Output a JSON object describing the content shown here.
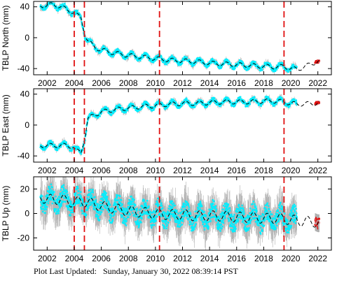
{
  "footer": {
    "label": "Plot Last Updated:",
    "value": "Sunday, January 30, 2022 08:39:14 PST"
  },
  "colors": {
    "data_fill": "#00eeff",
    "error_bars": "#b0b0b0",
    "event_lines": "#e01010",
    "trend": "#000000",
    "recent": "#e01010"
  },
  "chart_data": [
    {
      "type": "scatter",
      "ylabel": "TBLP North (mm)",
      "xlim": [
        2001.0,
        2023.0
      ],
      "ylim": [
        -48,
        47
      ],
      "xticks": [
        2002,
        2004,
        2006,
        2008,
        2010,
        2012,
        2014,
        2016,
        2018,
        2020,
        2022
      ],
      "yticks": [
        -40,
        0,
        40
      ],
      "event_lines": [
        2004.0,
        2004.75,
        2010.3,
        2019.5
      ],
      "series": [
        {
          "values": [
            [
              2001.5,
              41
            ],
            [
              2002.0,
              42
            ],
            [
              2002.5,
              43
            ],
            [
              2003.0,
              40
            ],
            [
              2003.5,
              36
            ],
            [
              2003.95,
              33
            ],
            [
              2004.1,
              30
            ],
            [
              2004.5,
              26
            ],
            [
              2004.8,
              4
            ],
            [
              2005.0,
              -4
            ],
            [
              2005.5,
              -12
            ],
            [
              2006.0,
              -16
            ],
            [
              2007.0,
              -20
            ],
            [
              2008.0,
              -23
            ],
            [
              2009.0,
              -25
            ],
            [
              2010.0,
              -27
            ],
            [
              2011.0,
              -29
            ],
            [
              2012.0,
              -30
            ],
            [
              2013.0,
              -31
            ],
            [
              2014.0,
              -33
            ],
            [
              2015.0,
              -34
            ],
            [
              2016.0,
              -35
            ],
            [
              2017.0,
              -36
            ],
            [
              2018.0,
              -37
            ],
            [
              2019.0,
              -38
            ],
            [
              2019.5,
              -37
            ],
            [
              2020.0,
              -40
            ],
            [
              2020.5,
              -41
            ]
          ]
        },
        {
          "name": "",
          "values": [
            [
              2021.8,
              -32
            ],
            [
              2022.0,
              -31
            ],
            [
              2022.1,
              -30
            ]
          ]
        }
      ]
    },
    {
      "type": "scatter",
      "ylabel": "TBLP East (mm)",
      "xlim": [
        2001.0,
        2023.0
      ],
      "ylim": [
        -48,
        47
      ],
      "xticks": [
        2002,
        2004,
        2006,
        2008,
        2010,
        2012,
        2014,
        2016,
        2018,
        2020,
        2022
      ],
      "yticks": [
        -40,
        0,
        40
      ],
      "event_lines": [
        2004.0,
        2004.75,
        2010.3,
        2019.5
      ],
      "series": [
        {
          "values": [
            [
              2001.5,
              -27
            ],
            [
              2002.0,
              -26
            ],
            [
              2002.5,
              -27
            ],
            [
              2003.0,
              -26
            ],
            [
              2003.5,
              -27
            ],
            [
              2003.95,
              -28
            ],
            [
              2004.1,
              -33
            ],
            [
              2004.5,
              -36
            ],
            [
              2004.8,
              -14
            ],
            [
              2005.0,
              8
            ],
            [
              2005.5,
              13
            ],
            [
              2006.0,
              17
            ],
            [
              2007.0,
              20
            ],
            [
              2008.0,
              22
            ],
            [
              2009.0,
              24
            ],
            [
              2010.0,
              25
            ],
            [
              2011.0,
              27
            ],
            [
              2012.0,
              28
            ],
            [
              2013.0,
              28
            ],
            [
              2014.0,
              29
            ],
            [
              2015.0,
              30
            ],
            [
              2016.0,
              30
            ],
            [
              2017.0,
              30
            ],
            [
              2018.0,
              31
            ],
            [
              2019.0,
              31
            ],
            [
              2019.5,
              30
            ],
            [
              2020.0,
              28
            ],
            [
              2020.5,
              27
            ]
          ]
        },
        {
          "name": "",
          "values": [
            [
              2021.8,
              28
            ],
            [
              2022.0,
              29
            ],
            [
              2022.1,
              29
            ]
          ]
        }
      ]
    },
    {
      "type": "scatter",
      "ylabel": "TBLP Up (mm)",
      "xlim": [
        2001.0,
        2023.0
      ],
      "ylim": [
        -30,
        30
      ],
      "xticks": [
        2002,
        2004,
        2006,
        2008,
        2010,
        2012,
        2014,
        2016,
        2018,
        2020,
        2022
      ],
      "yticks": [
        -20,
        0,
        20
      ],
      "event_lines": [
        2004.0,
        2004.75,
        2010.3,
        2019.5
      ],
      "series": [
        {
          "values": [
            [
              2001.5,
              13
            ],
            [
              2002.0,
              12
            ],
            [
              2002.5,
              11
            ],
            [
              2003.0,
              12
            ],
            [
              2003.5,
              10
            ],
            [
              2004.0,
              9
            ],
            [
              2004.5,
              10
            ],
            [
              2005.0,
              9
            ],
            [
              2006.0,
              6
            ],
            [
              2007.0,
              4
            ],
            [
              2008.0,
              2
            ],
            [
              2009.0,
              1
            ],
            [
              2010.0,
              0
            ],
            [
              2011.0,
              -1
            ],
            [
              2012.0,
              -1
            ],
            [
              2013.0,
              -2
            ],
            [
              2014.0,
              -2
            ],
            [
              2015.0,
              -2
            ],
            [
              2016.0,
              -3
            ],
            [
              2017.0,
              -3
            ],
            [
              2018.0,
              -4
            ],
            [
              2019.0,
              -4
            ],
            [
              2020.0,
              -5
            ],
            [
              2020.5,
              -6
            ]
          ]
        },
        {
          "name": "",
          "values": [
            [
              2021.8,
              -7
            ],
            [
              2022.0,
              -8
            ],
            [
              2022.1,
              -8
            ]
          ]
        }
      ]
    }
  ]
}
